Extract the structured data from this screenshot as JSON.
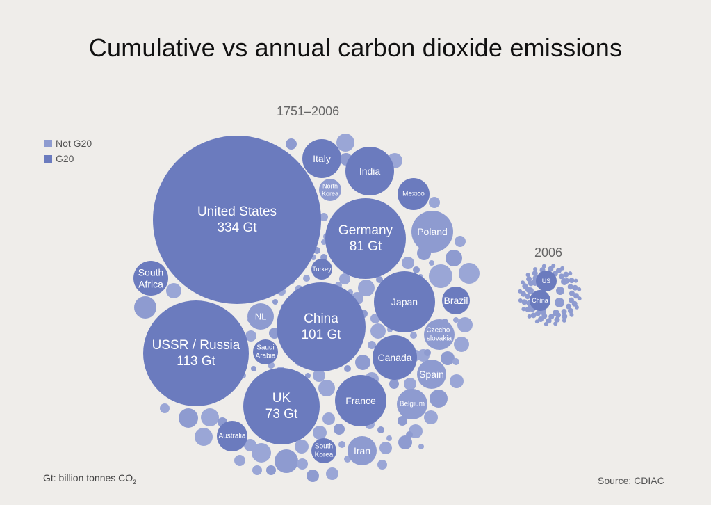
{
  "chart_data": {
    "type": "bubble",
    "title": "Cumulative vs annual carbon dioxide emissions",
    "legend": [
      {
        "label": "Not G20",
        "color": "#8e9bd0"
      },
      {
        "label": "G20",
        "color": "#6b7bbe"
      }
    ],
    "unit_note": {
      "text": "Gt: billion tonnes CO",
      "subscript": "2"
    },
    "source": "Source: CDIAC",
    "panels": [
      {
        "label": "1751–2006",
        "series": [
          {
            "name": "United States",
            "value": 334,
            "value_label": "334 Gt",
            "group": "G20"
          },
          {
            "name": "USSR / Russia",
            "value": 113,
            "value_label": "113 Gt",
            "group": "G20"
          },
          {
            "name": "China",
            "value": 101,
            "value_label": "101 Gt",
            "group": "G20"
          },
          {
            "name": "Germany",
            "value": 81,
            "value_label": "81 Gt",
            "group": "G20"
          },
          {
            "name": "UK",
            "value": 73,
            "value_label": "73 Gt",
            "group": "G20"
          },
          {
            "name": "Japan",
            "group": "G20"
          },
          {
            "name": "France",
            "group": "G20"
          },
          {
            "name": "Canada",
            "group": "G20"
          },
          {
            "name": "India",
            "group": "G20"
          },
          {
            "name": "Italy",
            "group": "G20"
          },
          {
            "name": "Poland",
            "group": "Not G20"
          },
          {
            "name": "South Africa",
            "group": "G20"
          },
          {
            "name": "Iran",
            "group": "Not G20"
          },
          {
            "name": "Australia",
            "group": "G20"
          },
          {
            "name": "Brazil",
            "group": "G20"
          },
          {
            "name": "Mexico",
            "group": "G20"
          },
          {
            "name": "South Korea",
            "group": "G20"
          },
          {
            "name": "Spain",
            "group": "Not G20"
          },
          {
            "name": "Czecho-slovakia",
            "group": "Not G20"
          },
          {
            "name": "Belgium",
            "group": "Not G20"
          },
          {
            "name": "NL",
            "group": "Not G20"
          },
          {
            "name": "Saudi Arabia",
            "group": "G20"
          },
          {
            "name": "North Korea",
            "group": "Not G20"
          },
          {
            "name": "Turkey",
            "group": "G20"
          }
        ]
      },
      {
        "label": "2006",
        "series": [
          {
            "name": "US",
            "group": "G20"
          },
          {
            "name": "China",
            "group": "G20"
          }
        ]
      }
    ]
  }
}
